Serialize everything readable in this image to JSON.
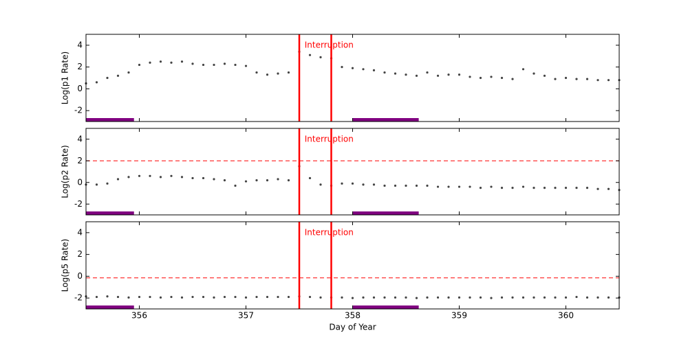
{
  "chart_data": [
    {
      "type": "scatter",
      "ylabel": "Log(p1 Rate)",
      "color": "#444444",
      "xlim": [
        355.5,
        360.5
      ],
      "ylim": [
        -3,
        5
      ],
      "yticks": [
        -2,
        0,
        2,
        4
      ],
      "xticks": [
        356,
        357,
        358,
        359,
        360
      ],
      "x": [
        355.5,
        355.6,
        355.7,
        355.8,
        355.9,
        356.0,
        356.1,
        356.2,
        356.3,
        356.4,
        356.5,
        356.6,
        356.7,
        356.8,
        356.9,
        357.0,
        357.1,
        357.2,
        357.3,
        357.4,
        357.5,
        357.6,
        357.7,
        357.8,
        357.9,
        358.0,
        358.1,
        358.2,
        358.3,
        358.4,
        358.5,
        358.6,
        358.7,
        358.8,
        358.9,
        359.0,
        359.1,
        359.2,
        359.3,
        359.4,
        359.5,
        359.6,
        359.7,
        359.8,
        359.9,
        360.0,
        360.1,
        360.2,
        360.3,
        360.4,
        360.5
      ],
      "values": [
        0.5,
        0.6,
        1.0,
        1.2,
        1.5,
        2.2,
        2.4,
        2.5,
        2.4,
        2.5,
        2.3,
        2.2,
        2.2,
        2.3,
        2.2,
        2.1,
        1.5,
        1.3,
        1.4,
        1.5,
        3.4,
        3.1,
        2.9,
        2.8,
        2.0,
        1.9,
        1.8,
        1.7,
        1.5,
        1.4,
        1.3,
        1.2,
        1.5,
        1.2,
        1.3,
        1.3,
        1.1,
        1.0,
        1.1,
        1.0,
        0.9,
        1.8,
        1.4,
        1.2,
        0.9,
        1.0,
        0.9,
        0.9,
        0.8,
        0.8,
        0.8
      ],
      "vlines": [
        357.5,
        357.8
      ],
      "vline_color": "#ff0000",
      "annotation": {
        "text": "Interruption",
        "x": 357.55,
        "y": 4
      },
      "spans": [
        [
          355.5,
          355.95
        ],
        [
          358.0,
          358.62
        ]
      ],
      "span_color": "#800080"
    },
    {
      "type": "scatter",
      "ylabel": "Log(p2 Rate)",
      "color": "#444444",
      "xlim": [
        355.5,
        360.5
      ],
      "ylim": [
        -3,
        5
      ],
      "yticks": [
        -2,
        0,
        2,
        4
      ],
      "xticks": [
        356,
        357,
        358,
        359,
        360
      ],
      "x": [
        355.5,
        355.6,
        355.7,
        355.8,
        355.9,
        356.0,
        356.1,
        356.2,
        356.3,
        356.4,
        356.5,
        356.6,
        356.7,
        356.8,
        356.9,
        357.0,
        357.1,
        357.2,
        357.3,
        357.4,
        357.5,
        357.6,
        357.7,
        357.8,
        357.9,
        358.0,
        358.1,
        358.2,
        358.3,
        358.4,
        358.5,
        358.6,
        358.7,
        358.8,
        358.9,
        359.0,
        359.1,
        359.2,
        359.3,
        359.4,
        359.5,
        359.6,
        359.7,
        359.8,
        359.9,
        360.0,
        360.1,
        360.2,
        360.3,
        360.4,
        360.5
      ],
      "values": [
        -0.2,
        -0.2,
        -0.1,
        0.3,
        0.5,
        0.6,
        0.6,
        0.5,
        0.6,
        0.5,
        0.4,
        0.4,
        0.3,
        0.2,
        -0.3,
        0.1,
        0.2,
        0.2,
        0.3,
        0.2,
        1.5,
        0.4,
        -0.2,
        -0.3,
        -0.1,
        -0.1,
        -0.2,
        -0.2,
        -0.3,
        -0.3,
        -0.3,
        -0.3,
        -0.3,
        -0.4,
        -0.4,
        -0.4,
        -0.4,
        -0.5,
        -0.4,
        -0.5,
        -0.5,
        -0.4,
        -0.5,
        -0.5,
        -0.5,
        -0.5,
        -0.5,
        -0.5,
        -0.6,
        -0.6,
        -0.7
      ],
      "hline": 2,
      "vlines": [
        357.5,
        357.8
      ],
      "vline_color": "#ff0000",
      "annotation": {
        "text": "Interruption",
        "x": 357.55,
        "y": 4
      },
      "spans": [
        [
          355.5,
          355.95
        ],
        [
          358.0,
          358.62
        ]
      ],
      "span_color": "#800080"
    },
    {
      "type": "scatter",
      "ylabel": "Log(p5 Rate)",
      "xlabel": "Day of Year",
      "color": "#444444",
      "xlim": [
        355.5,
        360.5
      ],
      "ylim": [
        -3,
        5
      ],
      "yticks": [
        -2,
        0,
        2,
        4
      ],
      "xticks": [
        356,
        357,
        358,
        359,
        360
      ],
      "x": [
        355.5,
        355.6,
        355.7,
        355.8,
        355.9,
        356.0,
        356.1,
        356.2,
        356.3,
        356.4,
        356.5,
        356.6,
        356.7,
        356.8,
        356.9,
        357.0,
        357.1,
        357.2,
        357.3,
        357.4,
        357.5,
        357.6,
        357.7,
        357.8,
        357.9,
        358.0,
        358.1,
        358.2,
        358.3,
        358.4,
        358.5,
        358.6,
        358.7,
        358.8,
        358.9,
        359.0,
        359.1,
        359.2,
        359.3,
        359.4,
        359.5,
        359.6,
        359.7,
        359.8,
        359.9,
        360.0,
        360.1,
        360.2,
        360.3,
        360.4,
        360.5
      ],
      "values": [
        -1.85,
        -1.9,
        -1.85,
        -1.9,
        -1.95,
        -1.9,
        -1.9,
        -1.95,
        -1.9,
        -1.95,
        -1.9,
        -1.9,
        -1.95,
        -1.9,
        -1.9,
        -1.95,
        -1.9,
        -1.9,
        -1.9,
        -1.9,
        -1.85,
        -1.9,
        -1.95,
        -1.95,
        -1.95,
        -2.0,
        -1.95,
        -1.95,
        -1.95,
        -1.95,
        -1.95,
        -2.0,
        -1.95,
        -1.95,
        -1.95,
        -1.95,
        -1.95,
        -1.95,
        -2.0,
        -1.95,
        -1.95,
        -1.95,
        -1.95,
        -1.95,
        -1.95,
        -1.95,
        -1.9,
        -1.95,
        -1.95,
        -1.95,
        -1.95
      ],
      "hline": -0.15,
      "vlines": [
        357.5,
        357.8
      ],
      "vline_color": "#ff0000",
      "annotation": {
        "text": "Interruption",
        "x": 357.55,
        "y": 4
      },
      "spans": [
        [
          355.5,
          355.95
        ],
        [
          358.0,
          358.62
        ]
      ],
      "span_color": "#800080"
    }
  ]
}
